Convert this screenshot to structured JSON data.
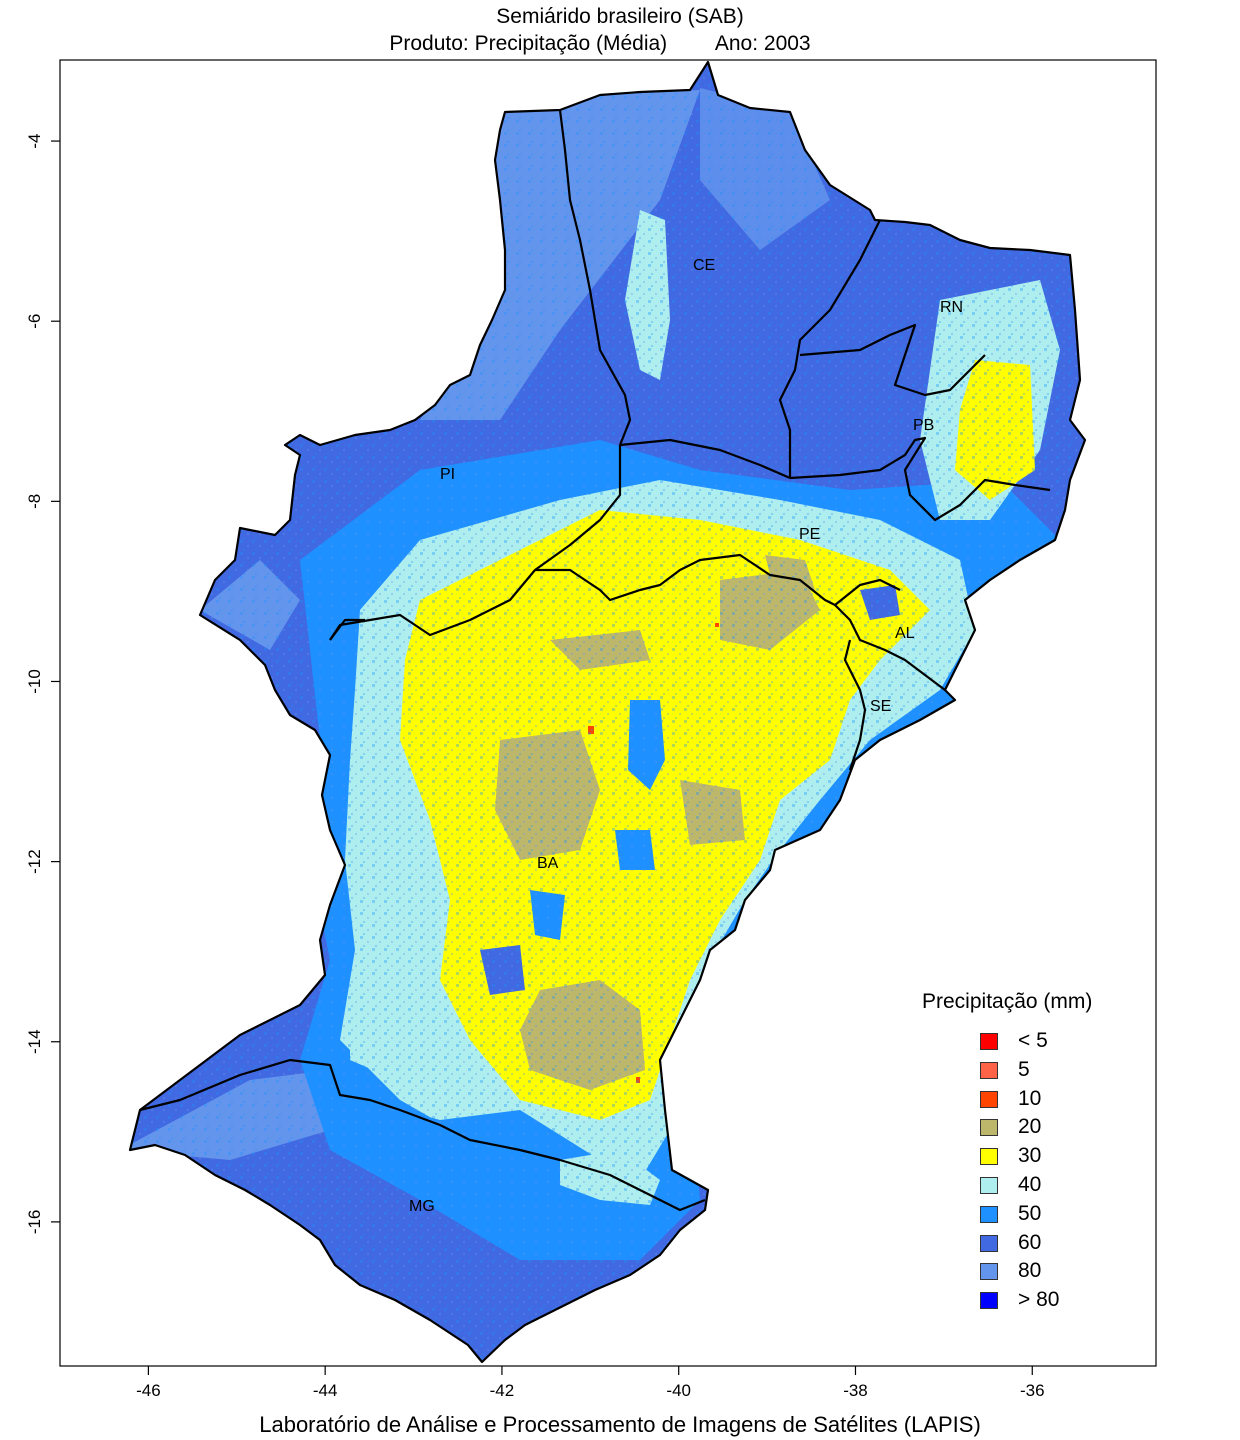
{
  "title": "Semiárido brasileiro (SAB)",
  "subtitle_product": "Produto: Precipitação (Média)",
  "subtitle_year": "Ano:  2003",
  "footer": "Laboratório de Análise e Processamento de Imagens de Satélites (LAPIS)",
  "x_axis": {
    "ticks": [
      "-46",
      "-44",
      "-42",
      "-40",
      "-38",
      "-36"
    ],
    "range": [
      -47,
      -34.6
    ]
  },
  "y_axis": {
    "ticks": [
      "-4",
      "-6",
      "-8",
      "-10",
      "-12",
      "-14",
      "-16"
    ],
    "range": [
      -17.6,
      -3.1
    ]
  },
  "states": [
    "CE",
    "RN",
    "PB",
    "PI",
    "PE",
    "AL",
    "SE",
    "BA",
    "MG"
  ],
  "legend": {
    "title": "Precipitação (mm)",
    "items": [
      {
        "label": "< 5",
        "color": "#ff0000"
      },
      {
        "label": "5",
        "color": "#ff6347"
      },
      {
        "label": "10",
        "color": "#ff4500"
      },
      {
        "label": "20",
        "color": "#bdb76b"
      },
      {
        "label": "30",
        "color": "#ffff00"
      },
      {
        "label": "40",
        "color": "#aeeeee"
      },
      {
        "label": "50",
        "color": "#1e90ff"
      },
      {
        "label": "60",
        "color": "#4169e1"
      },
      {
        "label": "80",
        "color": "#6495ed"
      },
      {
        "label": "> 80",
        "color": "#0000ff"
      }
    ]
  }
}
